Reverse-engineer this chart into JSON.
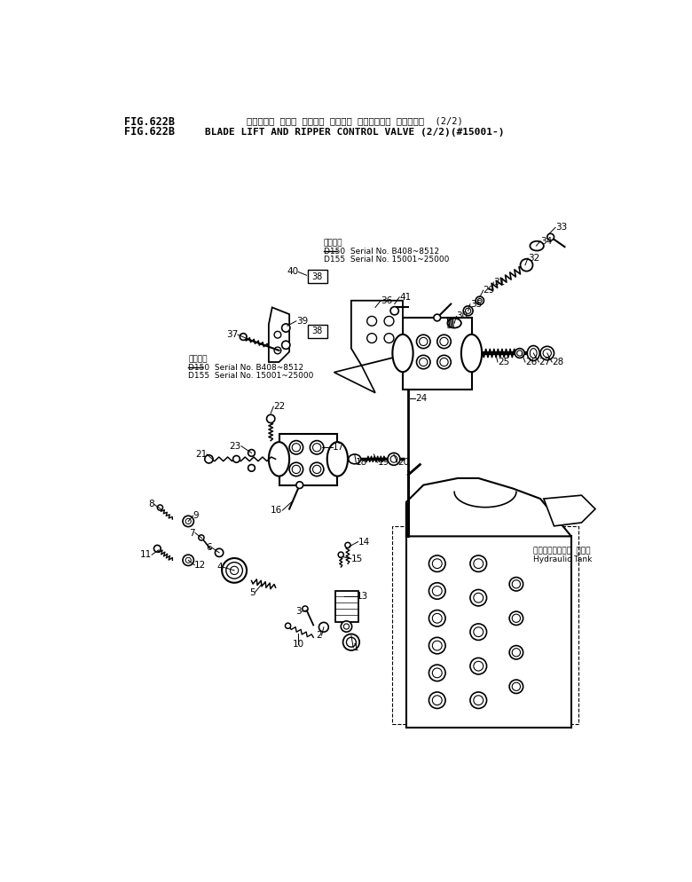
{
  "title_jp": "ブレード・ リフト オヨビ・ リッパ・ コントロール バルブ゙  (2/2)",
  "title_en": "BLADE LIFT AND RIPPER CONTROL VALVE (2/2)(#15001-)",
  "fig_label": "FIG.622B",
  "bg": "#ffffff",
  "lc": "#000000",
  "note1_title": "適用年式",
  "note1_l1": "D150  Serial No. B408~8512",
  "note1_l2": "D155  Serial No. 15001~25000",
  "note2_title": "適用年式",
  "note2_l1": "D150  Serial No. B408~8512",
  "note2_l2": "D155  Serial No. 15001~25000",
  "htank_jp": "バイドロリック タンク",
  "htank_en": "Hydraulic Tank"
}
